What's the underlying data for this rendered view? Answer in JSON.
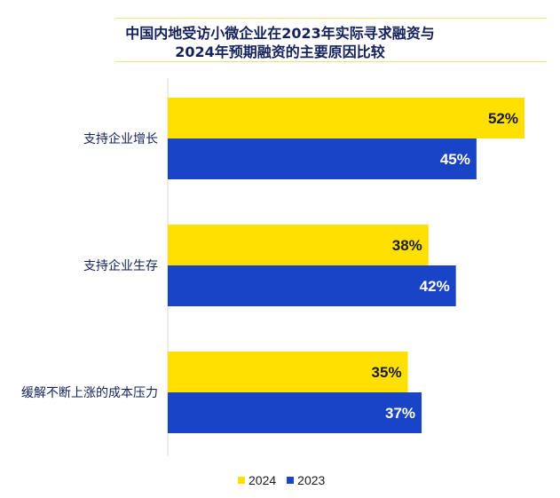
{
  "chart_data": {
    "type": "bar",
    "orientation": "horizontal",
    "title_lines": [
      "中国内地受访小微企业在2023年实际寻求融资与",
      "2024年预期融资的主要原因比较"
    ],
    "categories": [
      "支持企业增长",
      "支持企业生存",
      "缓解不断上涨的成本压力"
    ],
    "series": [
      {
        "name": "2024",
        "color": "#ffe000",
        "label_color": "#1a1a1a",
        "values": [
          52,
          38,
          35
        ],
        "labels": [
          "52%",
          "38%",
          "35%"
        ]
      },
      {
        "name": "2023",
        "color": "#1a44c6",
        "label_color": "#ffffff",
        "values": [
          45,
          42,
          37
        ],
        "labels": [
          "45%",
          "42%",
          "37%"
        ]
      }
    ],
    "value_unit": "%",
    "xlim": [
      0,
      52
    ],
    "grid": false,
    "legend_position": "bottom"
  }
}
